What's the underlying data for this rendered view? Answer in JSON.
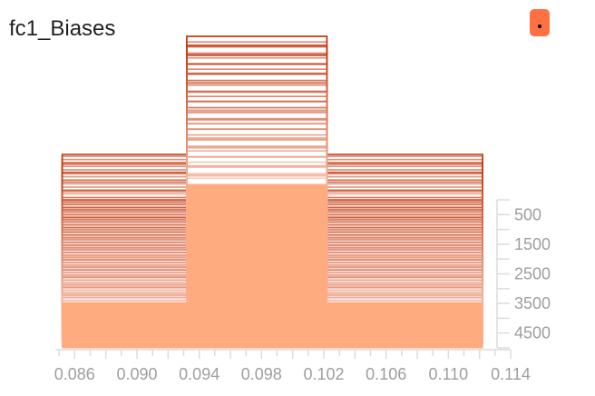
{
  "card": {
    "title": "fc1_Biases"
  },
  "colors": {
    "accent": "#ff7043",
    "ridge_dark": "#bf360c",
    "ridge_light": "#ffccbc",
    "front_fill": "#ffab80",
    "tick_color": "#9e9e9e",
    "axis_color": "#dcdcdc"
  },
  "chart_data": {
    "type": "area",
    "mode": "offset",
    "title": "",
    "xlabel": "",
    "ylabel": "",
    "x_ticks": [
      "0.086",
      "0.090",
      "0.094",
      "0.098",
      "0.102",
      "0.106",
      "0.110",
      "0.114"
    ],
    "y_ticks": [
      "500",
      "1500",
      "2500",
      "3500",
      "4500"
    ],
    "xlim": [
      0.084,
      0.114
    ],
    "step_range": [
      0,
      5000
    ],
    "histogram_edges": [
      0.0852,
      0.0922,
      0.0932,
      0.1022,
      0.1032,
      0.1122
    ],
    "histogram_height_ratio": [
      1,
      1,
      3.6,
      1,
      1
    ],
    "slice_count": 60
  }
}
